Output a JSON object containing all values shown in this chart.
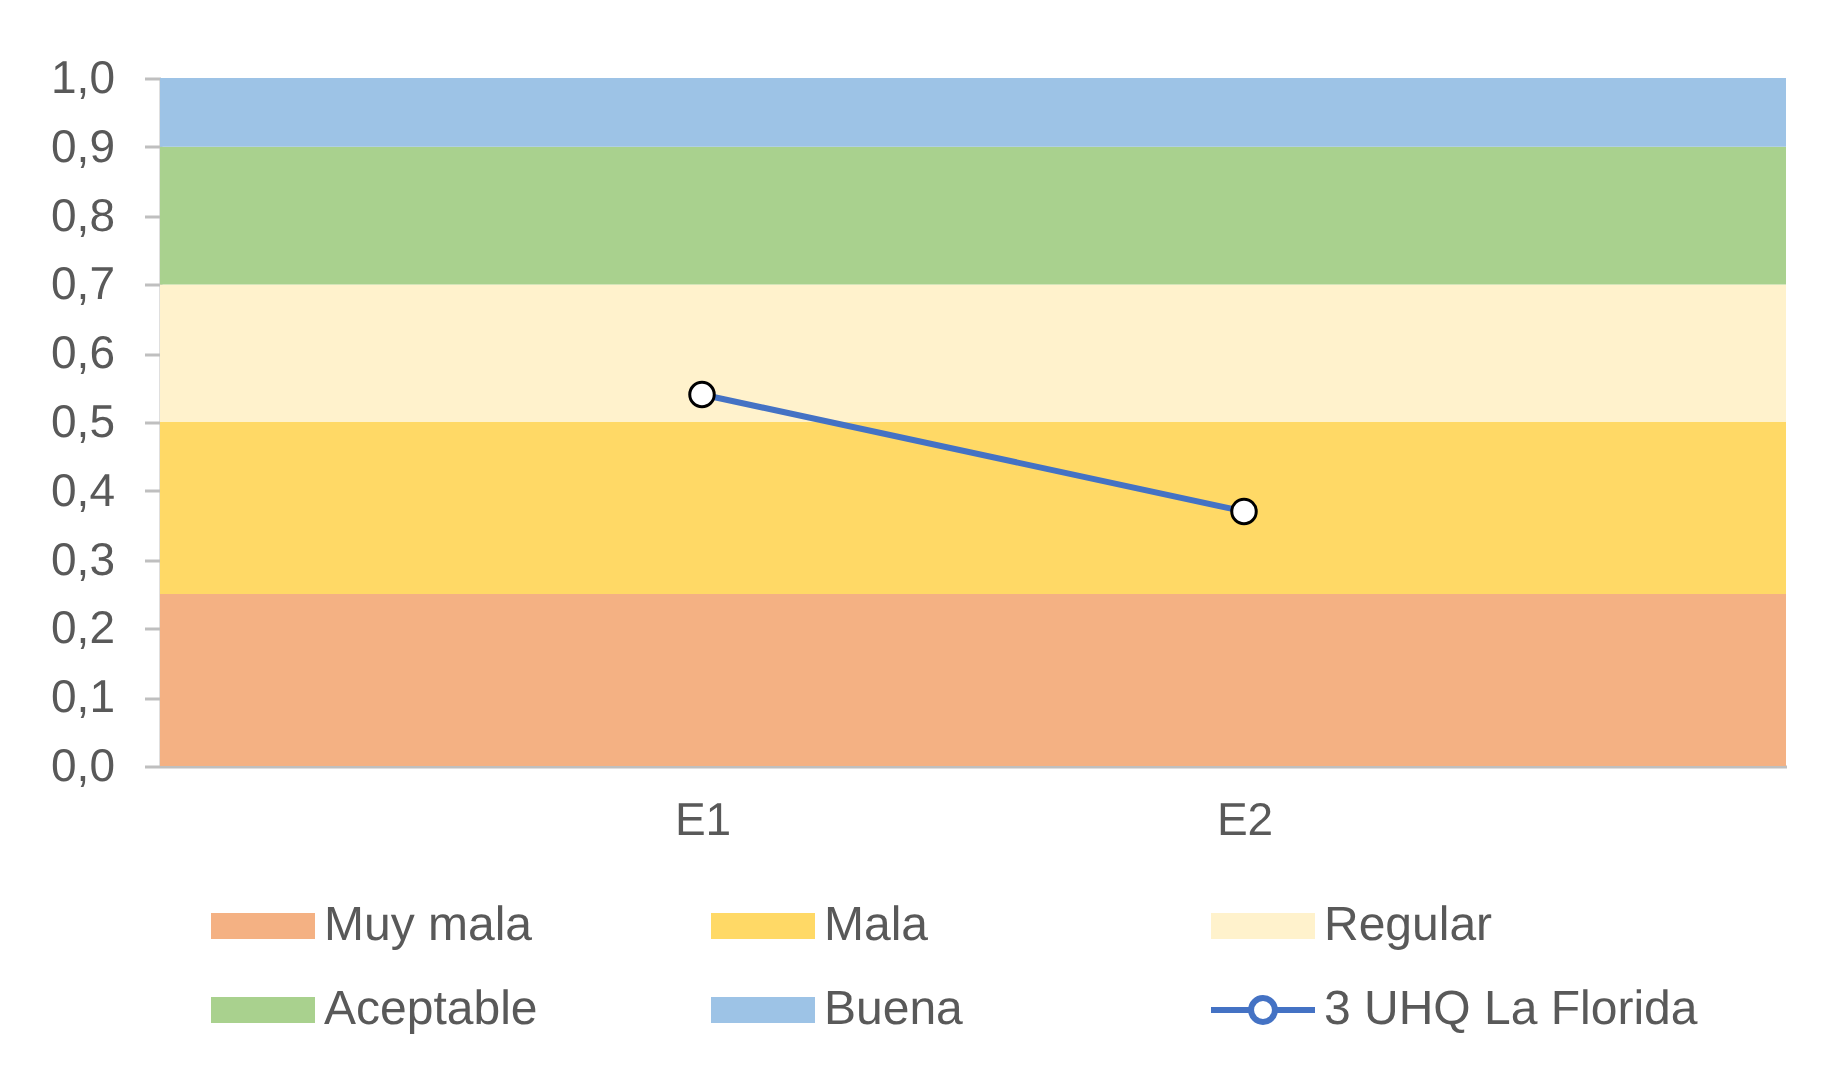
{
  "chart_data": {
    "type": "area",
    "stacked": true,
    "categories": [
      null,
      "E1",
      "E2",
      null
    ],
    "series": [
      {
        "name": "Muy mala",
        "color": "#f4b183",
        "values": [
          0.25,
          0.25,
          0.25,
          0.25
        ]
      },
      {
        "name": "Mala",
        "color": "#ffd966",
        "values": [
          0.25,
          0.25,
          0.25,
          0.25
        ]
      },
      {
        "name": "Regular",
        "color": "#fff2cc",
        "values": [
          0.2,
          0.2,
          0.2,
          0.2
        ]
      },
      {
        "name": "Aceptable",
        "color": "#a9d18e",
        "values": [
          0.2,
          0.2,
          0.2,
          0.2
        ]
      },
      {
        "name": "Buena",
        "color": "#9dc3e6",
        "values": [
          0.1,
          0.1,
          0.1,
          0.1
        ]
      },
      {
        "name": "3 UHQ La Florida",
        "type": "line",
        "color": "#4472c4",
        "marker": "circle",
        "line_style": "solid",
        "values": [
          null,
          0.54,
          0.37,
          null
        ]
      }
    ],
    "ylim": [
      0,
      1
    ],
    "yticks": [
      {
        "value": 0,
        "label": "0,0"
      },
      {
        "value": 0.1,
        "label": "0,1"
      },
      {
        "value": 0.2,
        "label": "0,2"
      },
      {
        "value": 0.3,
        "label": "0,3"
      },
      {
        "value": 0.4,
        "label": "0,4"
      },
      {
        "value": 0.5,
        "label": "0,5"
      },
      {
        "value": 0.6,
        "label": "0,6"
      },
      {
        "value": 0.7,
        "label": "0,7"
      },
      {
        "value": 0.8,
        "label": "0,8"
      },
      {
        "value": 0.9,
        "label": "0,9"
      },
      {
        "value": 1,
        "label": "1,0"
      }
    ],
    "legend": "bottom"
  }
}
